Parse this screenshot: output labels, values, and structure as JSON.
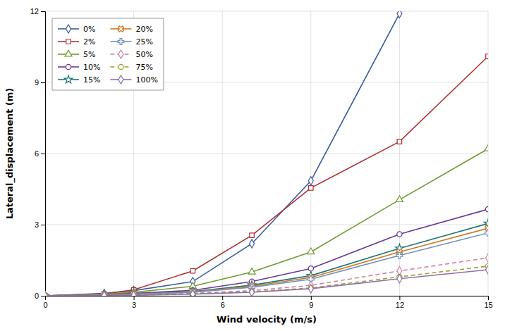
{
  "chart_data": {
    "type": "line",
    "xlabel": "Wind velocity (m/s)",
    "ylabel": "Lateral_displacement (m)",
    "xlim": [
      0,
      15
    ],
    "ylim": [
      0,
      12
    ],
    "xticks": [
      0,
      3,
      6,
      9,
      12,
      15
    ],
    "yticks": [
      0,
      3,
      6,
      9,
      12
    ],
    "grid": true,
    "legend": "upper left",
    "series": [
      {
        "name": "0%",
        "color": "#3A5BA0",
        "marker": "diamond",
        "line_style": "solid",
        "x": [
          0,
          2,
          3,
          5,
          7,
          9,
          12
        ],
        "values": [
          0,
          0.1,
          0.22,
          0.6,
          2.2,
          4.85,
          11.9
        ]
      },
      {
        "name": "2%",
        "color": "#B03030",
        "marker": "square",
        "line_style": "solid",
        "x": [
          0,
          2,
          3,
          5,
          7,
          9,
          12,
          15
        ],
        "values": [
          0,
          0.08,
          0.25,
          1.05,
          2.55,
          4.55,
          6.5,
          10.1
        ]
      },
      {
        "name": "5%",
        "color": "#6E9A30",
        "marker": "triangle",
        "line_style": "solid",
        "x": [
          0,
          2,
          3,
          5,
          7,
          9,
          12,
          15
        ],
        "values": [
          0,
          0.07,
          0.15,
          0.4,
          1.0,
          1.85,
          4.05,
          6.2
        ]
      },
      {
        "name": "10%",
        "color": "#6A3895",
        "marker": "circle",
        "line_style": "solid",
        "x": [
          0,
          2,
          3,
          5,
          7,
          9,
          12,
          15
        ],
        "values": [
          0,
          0.05,
          0.1,
          0.23,
          0.6,
          1.15,
          2.6,
          3.65
        ]
      },
      {
        "name": "15%",
        "color": "#207878",
        "marker": "star",
        "line_style": "solid",
        "x": [
          0,
          2,
          3,
          5,
          7,
          9,
          12,
          15
        ],
        "values": [
          0,
          0.04,
          0.08,
          0.18,
          0.45,
          0.85,
          2.0,
          3.05
        ]
      },
      {
        "name": "20%",
        "color": "#D07820",
        "marker": "x",
        "line_style": "solid",
        "x": [
          0,
          2,
          3,
          5,
          7,
          9,
          12,
          15
        ],
        "values": [
          0,
          0.04,
          0.07,
          0.16,
          0.4,
          0.77,
          1.85,
          2.85
        ]
      },
      {
        "name": "25%",
        "color": "#7090C0",
        "marker": "plus",
        "line_style": "solid",
        "x": [
          0,
          2,
          3,
          5,
          7,
          9,
          12,
          15
        ],
        "values": [
          0,
          0.03,
          0.06,
          0.15,
          0.36,
          0.7,
          1.7,
          2.65
        ]
      },
      {
        "name": "50%",
        "color": "#D080A0",
        "marker": "diamond",
        "line_style": "dashed",
        "x": [
          0,
          2,
          3,
          5,
          7,
          9,
          12,
          15
        ],
        "values": [
          0,
          0.02,
          0.04,
          0.1,
          0.22,
          0.44,
          1.05,
          1.6
        ]
      },
      {
        "name": "75%",
        "color": "#A0A030",
        "marker": "circle",
        "line_style": "dashed",
        "x": [
          0,
          2,
          3,
          5,
          7,
          9,
          12,
          15
        ],
        "values": [
          0,
          0.01,
          0.03,
          0.08,
          0.17,
          0.33,
          0.8,
          1.25
        ]
      },
      {
        "name": "100%",
        "color": "#9070A8",
        "marker": "diamond",
        "line_style": "solid",
        "x": [
          0,
          2,
          3,
          5,
          7,
          9,
          12,
          15
        ],
        "values": [
          0,
          0.01,
          0.02,
          0.07,
          0.15,
          0.3,
          0.72,
          1.1
        ]
      }
    ]
  }
}
